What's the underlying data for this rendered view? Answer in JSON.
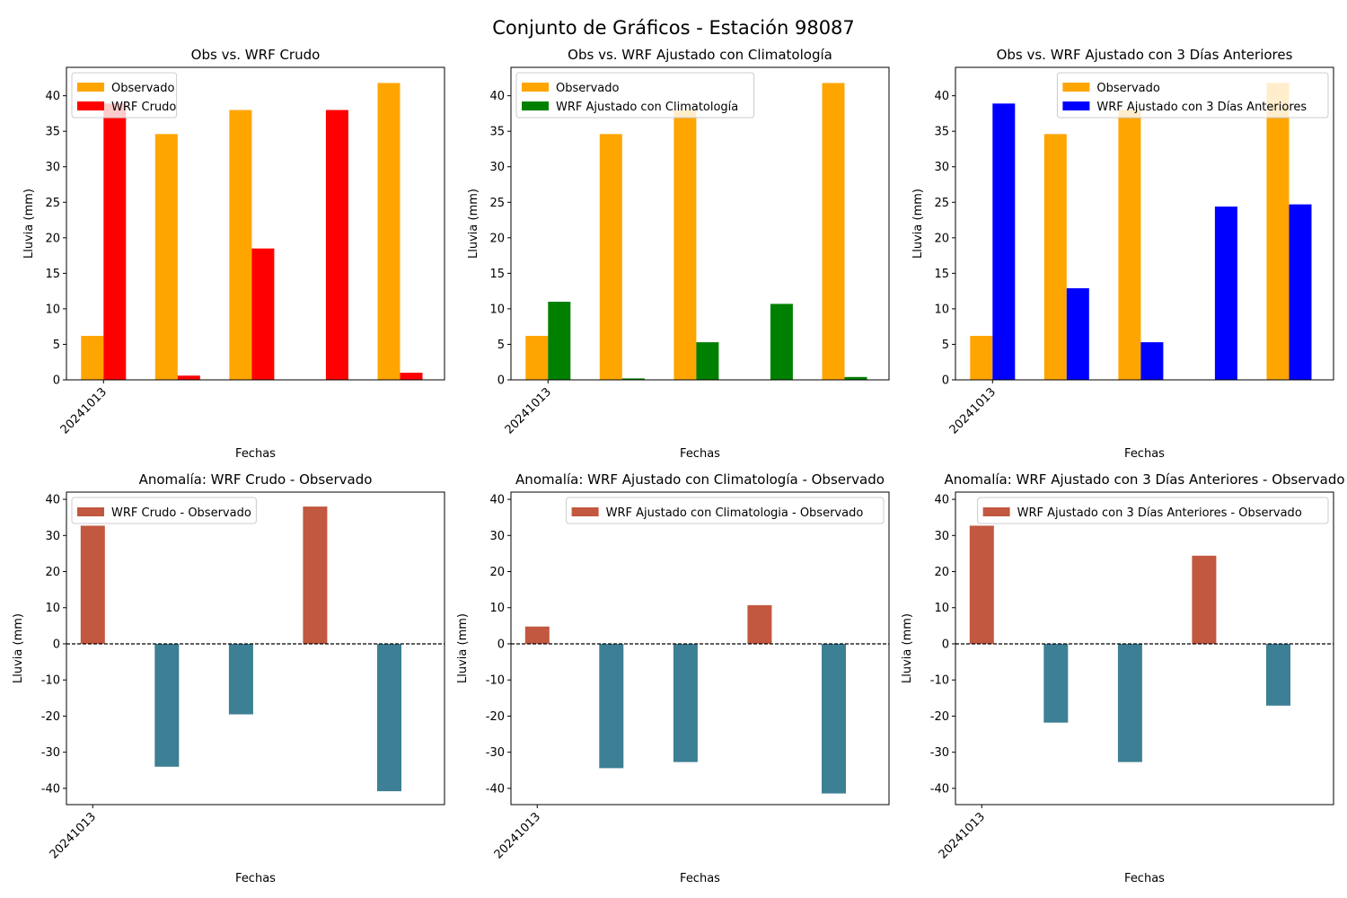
{
  "figure": {
    "title": "Conjunto de Gráficos - Estación 98087"
  },
  "colors": {
    "observado": "#FFA500",
    "wrf_crudo": "#FF0000",
    "wrf_clim": "#008000",
    "wrf_3dias": "#0000FF",
    "anomaly_positive": "#C1583F",
    "anomaly_negative": "#3D7F94",
    "zero_line": "#000000"
  },
  "chart_data": [
    {
      "type": "bar",
      "title": "Obs vs. WRF Crudo",
      "xlabel": "Fechas",
      "ylabel": "Lluvia (mm)",
      "x_tick_labels": [
        "20241013"
      ],
      "ylim": [
        0,
        44
      ],
      "yticks": [
        0,
        5,
        10,
        15,
        20,
        25,
        30,
        35,
        40
      ],
      "legend_position": "upper-left",
      "series": [
        {
          "name": "Observado",
          "color_key": "observado",
          "values": [
            6.2,
            34.6,
            38.0,
            0,
            41.8
          ]
        },
        {
          "name": "WRF Crudo",
          "color_key": "wrf_crudo",
          "values": [
            38.9,
            0.6,
            18.5,
            38.0,
            1.0
          ]
        }
      ]
    },
    {
      "type": "bar",
      "title": "Obs vs. WRF Ajustado con Climatología",
      "xlabel": "Fechas",
      "ylabel": "Lluvia (mm)",
      "x_tick_labels": [
        "20241013"
      ],
      "ylim": [
        0,
        44
      ],
      "yticks": [
        0,
        5,
        10,
        15,
        20,
        25,
        30,
        35,
        40
      ],
      "legend_position": "upper-left",
      "series": [
        {
          "name": "Observado",
          "color_key": "observado",
          "values": [
            6.2,
            34.6,
            38.0,
            0,
            41.8
          ]
        },
        {
          "name": "WRF Ajustado con Climatología",
          "color_key": "wrf_clim",
          "values": [
            11.0,
            0.2,
            5.3,
            10.7,
            0.4
          ]
        }
      ]
    },
    {
      "type": "bar",
      "title": "Obs vs. WRF Ajustado con 3 Días Anteriores",
      "xlabel": "Fechas",
      "ylabel": "Lluvia (mm)",
      "x_tick_labels": [
        "20241013"
      ],
      "ylim": [
        0,
        44
      ],
      "yticks": [
        0,
        5,
        10,
        15,
        20,
        25,
        30,
        35,
        40
      ],
      "legend_position": "upper-right",
      "series": [
        {
          "name": "Observado",
          "color_key": "observado",
          "values": [
            6.2,
            34.6,
            38.0,
            0,
            41.8
          ]
        },
        {
          "name": "WRF Ajustado con 3 Días Anteriores",
          "color_key": "wrf_3dias",
          "values": [
            38.9,
            12.9,
            5.3,
            24.4,
            24.7
          ]
        }
      ]
    },
    {
      "type": "bar",
      "title": "Anomalía: WRF Crudo - Observado",
      "xlabel": "Fechas",
      "ylabel": "Lluvia (mm)",
      "x_tick_labels": [
        "20241013"
      ],
      "ylim": [
        -44.5,
        42
      ],
      "yticks": [
        -40,
        -30,
        -20,
        -10,
        0,
        10,
        20,
        30,
        40
      ],
      "zero_line": true,
      "legend_position": "upper-left",
      "legend_label": "WRF Crudo - Observado",
      "values": [
        32.7,
        -34.0,
        -19.5,
        38.0,
        -40.8
      ]
    },
    {
      "type": "bar",
      "title": "Anomalía: WRF Ajustado con Climatología - Observado",
      "xlabel": "Fechas",
      "ylabel": "Lluvia (mm)",
      "x_tick_labels": [
        "20241013"
      ],
      "ylim": [
        -44.5,
        42
      ],
      "yticks": [
        -40,
        -30,
        -20,
        -10,
        0,
        10,
        20,
        30,
        40
      ],
      "zero_line": true,
      "legend_position": "upper-right",
      "legend_label": "WRF Ajustado con Climatologia - Observado",
      "values": [
        4.8,
        -34.4,
        -32.7,
        10.7,
        -41.4
      ]
    },
    {
      "type": "bar",
      "title": "Anomalía: WRF Ajustado con 3 Días Anteriores - Observado",
      "xlabel": "Fechas",
      "ylabel": "Lluvia (mm)",
      "x_tick_labels": [
        "20241013"
      ],
      "ylim": [
        -44.5,
        42
      ],
      "yticks": [
        -40,
        -30,
        -20,
        -10,
        0,
        10,
        20,
        30,
        40
      ],
      "zero_line": true,
      "legend_position": "upper-right",
      "legend_label": "WRF Ajustado con 3 Días Anteriores - Observado",
      "values": [
        32.7,
        -21.8,
        -32.7,
        24.4,
        -17.1
      ]
    }
  ]
}
